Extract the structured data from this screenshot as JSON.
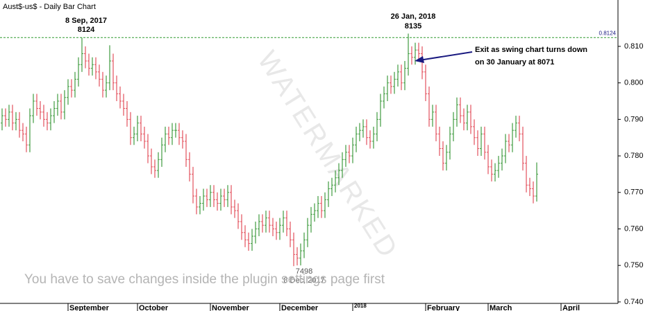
{
  "chart_data": {
    "type": "ohlc",
    "title": "Aust$-us$ - Daily Bar Chart",
    "up_color": "#3f9b3f",
    "down_color": "#e2505c",
    "ylim": [
      0.7396,
      0.8227
    ],
    "yticks": [
      {
        "value": 0.74,
        "label": "0.740"
      },
      {
        "value": 0.75,
        "label": "0.750"
      },
      {
        "value": 0.76,
        "label": "0.760"
      },
      {
        "value": 0.77,
        "label": "0.770"
      },
      {
        "value": 0.78,
        "label": "0.780"
      },
      {
        "value": 0.79,
        "label": "0.790"
      },
      {
        "value": 0.8,
        "label": "0.800"
      },
      {
        "value": 0.81,
        "label": "0.810"
      }
    ],
    "xlim": [
      -0.6,
      177.4
    ],
    "xticks": [
      {
        "value": 19,
        "label": "September"
      },
      {
        "value": 39,
        "label": "October"
      },
      {
        "value": 60,
        "label": "November"
      },
      {
        "value": 80,
        "label": "December"
      },
      {
        "value": 101,
        "label": "2018"
      },
      {
        "value": 122,
        "label": "February"
      },
      {
        "value": 140,
        "label": "March"
      },
      {
        "value": 161,
        "label": "April"
      }
    ],
    "hline": {
      "value": 0.8124,
      "color": "#2f9a2f"
    },
    "open": [
      0.789,
      0.791,
      0.79,
      0.792,
      0.789,
      0.79,
      0.787,
      0.786,
      0.783,
      0.791,
      0.795,
      0.793,
      0.792,
      0.79,
      0.789,
      0.791,
      0.793,
      0.795,
      0.792,
      0.796,
      0.799,
      0.798,
      0.801,
      0.805,
      0.808,
      0.806,
      0.804,
      0.805,
      0.803,
      0.801,
      0.798,
      0.8,
      0.806,
      0.8,
      0.797,
      0.795,
      0.793,
      0.79,
      0.785,
      0.786,
      0.789,
      0.786,
      0.784,
      0.78,
      0.777,
      0.776,
      0.779,
      0.783,
      0.786,
      0.785,
      0.787,
      0.787,
      0.785,
      0.784,
      0.779,
      0.775,
      0.769,
      0.766,
      0.767,
      0.769,
      0.768,
      0.77,
      0.768,
      0.767,
      0.769,
      0.768,
      0.77,
      0.766,
      0.765,
      0.762,
      0.759,
      0.757,
      0.756,
      0.758,
      0.76,
      0.762,
      0.761,
      0.763,
      0.761,
      0.76,
      0.759,
      0.761,
      0.763,
      0.76,
      0.757,
      0.753,
      0.752,
      0.754,
      0.757,
      0.761,
      0.764,
      0.765,
      0.767,
      0.765,
      0.768,
      0.771,
      0.772,
      0.774,
      0.776,
      0.779,
      0.781,
      0.78,
      0.783,
      0.786,
      0.787,
      0.788,
      0.785,
      0.784,
      0.786,
      0.79,
      0.795,
      0.797,
      0.8,
      0.799,
      0.801,
      0.803,
      0.8,
      0.804,
      0.808,
      0.807,
      0.809,
      0.808,
      0.803,
      0.797,
      0.79,
      0.792,
      0.786,
      0.782,
      0.778,
      0.781,
      0.786,
      0.79,
      0.794,
      0.791,
      0.789,
      0.792,
      0.788,
      0.785,
      0.782,
      0.786,
      0.781,
      0.777,
      0.775,
      0.776,
      0.778,
      0.78,
      0.784,
      0.783,
      0.787,
      0.789,
      0.786,
      0.778,
      0.772,
      0.771,
      0.769
    ],
    "high": [
      0.793,
      0.793,
      0.794,
      0.794,
      0.792,
      0.792,
      0.789,
      0.788,
      0.793,
      0.797,
      0.797,
      0.795,
      0.794,
      0.792,
      0.793,
      0.795,
      0.797,
      0.797,
      0.798,
      0.801,
      0.801,
      0.803,
      0.807,
      0.8124,
      0.81,
      0.808,
      0.807,
      0.807,
      0.805,
      0.803,
      0.802,
      0.8103,
      0.808,
      0.802,
      0.799,
      0.797,
      0.795,
      0.792,
      0.788,
      0.791,
      0.791,
      0.788,
      0.786,
      0.782,
      0.779,
      0.781,
      0.785,
      0.788,
      0.788,
      0.789,
      0.789,
      0.789,
      0.787,
      0.786,
      0.781,
      0.777,
      0.771,
      0.769,
      0.771,
      0.771,
      0.772,
      0.772,
      0.77,
      0.771,
      0.771,
      0.772,
      0.772,
      0.768,
      0.767,
      0.764,
      0.761,
      0.759,
      0.76,
      0.762,
      0.764,
      0.764,
      0.765,
      0.765,
      0.763,
      0.762,
      0.763,
      0.765,
      0.765,
      0.762,
      0.759,
      0.755,
      0.756,
      0.759,
      0.763,
      0.766,
      0.767,
      0.769,
      0.769,
      0.77,
      0.773,
      0.774,
      0.776,
      0.778,
      0.781,
      0.783,
      0.783,
      0.785,
      0.788,
      0.789,
      0.79,
      0.79,
      0.787,
      0.788,
      0.792,
      0.797,
      0.799,
      0.802,
      0.802,
      0.803,
      0.805,
      0.805,
      0.806,
      0.8135,
      0.81,
      0.811,
      0.811,
      0.81,
      0.805,
      0.799,
      0.794,
      0.794,
      0.788,
      0.784,
      0.783,
      0.788,
      0.792,
      0.796,
      0.796,
      0.793,
      0.794,
      0.794,
      0.79,
      0.787,
      0.788,
      0.788,
      0.783,
      0.779,
      0.778,
      0.78,
      0.782,
      0.786,
      0.786,
      0.789,
      0.791,
      0.791,
      0.788,
      0.78,
      0.774,
      0.773,
      0.7782
    ],
    "low": [
      0.787,
      0.788,
      0.788,
      0.787,
      0.787,
      0.785,
      0.784,
      0.781,
      0.781,
      0.789,
      0.791,
      0.79,
      0.788,
      0.787,
      0.787,
      0.789,
      0.791,
      0.79,
      0.79,
      0.794,
      0.796,
      0.796,
      0.799,
      0.803,
      0.804,
      0.802,
      0.802,
      0.801,
      0.799,
      0.796,
      0.796,
      0.798,
      0.798,
      0.795,
      0.793,
      0.791,
      0.788,
      0.783,
      0.783,
      0.784,
      0.784,
      0.782,
      0.778,
      0.775,
      0.774,
      0.774,
      0.777,
      0.781,
      0.783,
      0.783,
      0.785,
      0.783,
      0.782,
      0.777,
      0.773,
      0.767,
      0.764,
      0.764,
      0.765,
      0.766,
      0.766,
      0.766,
      0.765,
      0.765,
      0.766,
      0.766,
      0.764,
      0.763,
      0.76,
      0.757,
      0.755,
      0.754,
      0.754,
      0.756,
      0.758,
      0.759,
      0.759,
      0.759,
      0.758,
      0.757,
      0.757,
      0.759,
      0.758,
      0.755,
      0.7498,
      0.75,
      0.75,
      0.752,
      0.755,
      0.759,
      0.762,
      0.763,
      0.763,
      0.763,
      0.766,
      0.769,
      0.77,
      0.772,
      0.774,
      0.777,
      0.778,
      0.778,
      0.781,
      0.784,
      0.785,
      0.783,
      0.782,
      0.782,
      0.784,
      0.788,
      0.793,
      0.795,
      0.797,
      0.797,
      0.799,
      0.798,
      0.798,
      0.802,
      0.805,
      0.805,
      0.806,
      0.801,
      0.795,
      0.788,
      0.788,
      0.784,
      0.78,
      0.776,
      0.776,
      0.779,
      0.784,
      0.788,
      0.789,
      0.787,
      0.787,
      0.786,
      0.783,
      0.78,
      0.78,
      0.779,
      0.775,
      0.773,
      0.773,
      0.774,
      0.776,
      0.778,
      0.781,
      0.781,
      0.785,
      0.784,
      0.776,
      0.77,
      0.769,
      0.767,
      0.7675
    ],
    "close": [
      0.791,
      0.79,
      0.792,
      0.789,
      0.79,
      0.787,
      0.786,
      0.783,
      0.791,
      0.795,
      0.793,
      0.792,
      0.79,
      0.789,
      0.791,
      0.793,
      0.795,
      0.792,
      0.796,
      0.799,
      0.798,
      0.801,
      0.805,
      0.808,
      0.806,
      0.804,
      0.805,
      0.803,
      0.801,
      0.798,
      0.8,
      0.806,
      0.8,
      0.797,
      0.795,
      0.793,
      0.79,
      0.785,
      0.786,
      0.789,
      0.786,
      0.784,
      0.78,
      0.777,
      0.776,
      0.779,
      0.783,
      0.786,
      0.785,
      0.787,
      0.787,
      0.785,
      0.784,
      0.779,
      0.775,
      0.769,
      0.766,
      0.767,
      0.769,
      0.768,
      0.77,
      0.768,
      0.767,
      0.769,
      0.768,
      0.77,
      0.766,
      0.765,
      0.762,
      0.759,
      0.757,
      0.756,
      0.758,
      0.76,
      0.762,
      0.761,
      0.763,
      0.761,
      0.76,
      0.759,
      0.761,
      0.763,
      0.76,
      0.757,
      0.753,
      0.752,
      0.754,
      0.757,
      0.761,
      0.764,
      0.765,
      0.767,
      0.765,
      0.768,
      0.771,
      0.772,
      0.774,
      0.776,
      0.779,
      0.781,
      0.78,
      0.783,
      0.786,
      0.787,
      0.788,
      0.785,
      0.784,
      0.786,
      0.79,
      0.795,
      0.797,
      0.8,
      0.799,
      0.801,
      0.803,
      0.8,
      0.804,
      0.808,
      0.807,
      0.809,
      0.808,
      0.803,
      0.797,
      0.79,
      0.792,
      0.786,
      0.782,
      0.778,
      0.781,
      0.786,
      0.79,
      0.794,
      0.791,
      0.789,
      0.792,
      0.788,
      0.785,
      0.782,
      0.786,
      0.781,
      0.777,
      0.775,
      0.776,
      0.778,
      0.78,
      0.784,
      0.783,
      0.787,
      0.789,
      0.786,
      0.778,
      0.772,
      0.771,
      0.769,
      0.775
    ],
    "annotations": [
      "8 Sep, 2017",
      "8124",
      "26 Jan, 2018",
      "8135",
      "Exit as swing chart turns down",
      "on 30 January at 8071",
      "7498",
      "8 Dec, 2017"
    ],
    "watermark": "WATERMARKED",
    "notice": "You have to save changes inside the plugin settings page first"
  }
}
